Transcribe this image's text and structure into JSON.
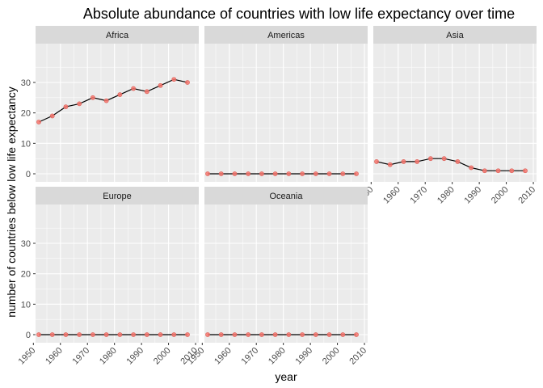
{
  "chart_data": {
    "type": "line",
    "title": "Absolute abundance of countries with low life expectancy over time",
    "xlabel": "year",
    "ylabel": "number of countries below low life expectancy",
    "x": [
      1952,
      1957,
      1962,
      1967,
      1972,
      1977,
      1982,
      1987,
      1992,
      1997,
      2002,
      2007
    ],
    "xlim": [
      1950,
      2010
    ],
    "ylim": [
      0,
      35
    ],
    "x_ticks": [
      1950,
      1960,
      1970,
      1980,
      1990,
      2000,
      2010
    ],
    "y_ticks": [
      0,
      10,
      20,
      30
    ],
    "grid": true,
    "point_color": "#f8766d",
    "line_color": "#000000",
    "panel_background": "#ebebeb",
    "strip_background": "#d9d9d9",
    "series": [
      {
        "name": "Africa",
        "values": [
          17,
          19,
          22,
          23,
          25,
          24,
          26,
          28,
          27,
          29,
          31,
          30
        ]
      },
      {
        "name": "Americas",
        "values": [
          0,
          0,
          0,
          0,
          0,
          0,
          0,
          0,
          0,
          0,
          0,
          0
        ]
      },
      {
        "name": "Asia",
        "values": [
          4,
          3,
          4,
          4,
          5,
          5,
          4,
          2,
          1,
          1,
          1,
          1
        ]
      },
      {
        "name": "Europe",
        "values": [
          0,
          0,
          0,
          0,
          0,
          0,
          0,
          0,
          0,
          0,
          0,
          0
        ]
      },
      {
        "name": "Oceania",
        "values": [
          0,
          0,
          0,
          0,
          0,
          0,
          0,
          0,
          0,
          0,
          0,
          0
        ]
      }
    ]
  }
}
